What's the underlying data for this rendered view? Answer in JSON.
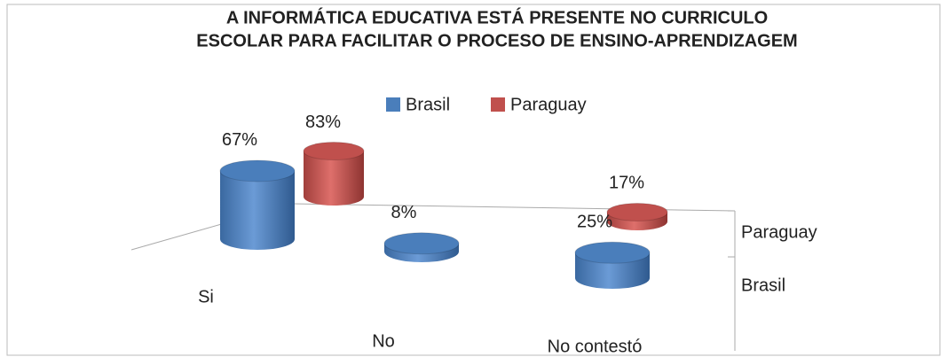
{
  "chart_data": {
    "type": "bar3d",
    "title": [
      "A INFORMÁTICA EDUCATIVA ESTÁ PRESENTE NO CURRICULO",
      "ESCOLAR PARA FACILITAR O PROCESO DE ENSINO-APRENDIZAGEM"
    ],
    "categories": [
      "Si",
      "No",
      "No contestó"
    ],
    "series": [
      {
        "name": "Brasil",
        "color": "#4a7ebb",
        "values": [
          67,
          8,
          25
        ],
        "value_labels": [
          "67%",
          "8%",
          "25%"
        ]
      },
      {
        "name": "Paraguay",
        "color": "#c0504d",
        "values": [
          83,
          null,
          17
        ],
        "value_labels": [
          "83%",
          null,
          "17%"
        ]
      }
    ],
    "legend": "top"
  }
}
